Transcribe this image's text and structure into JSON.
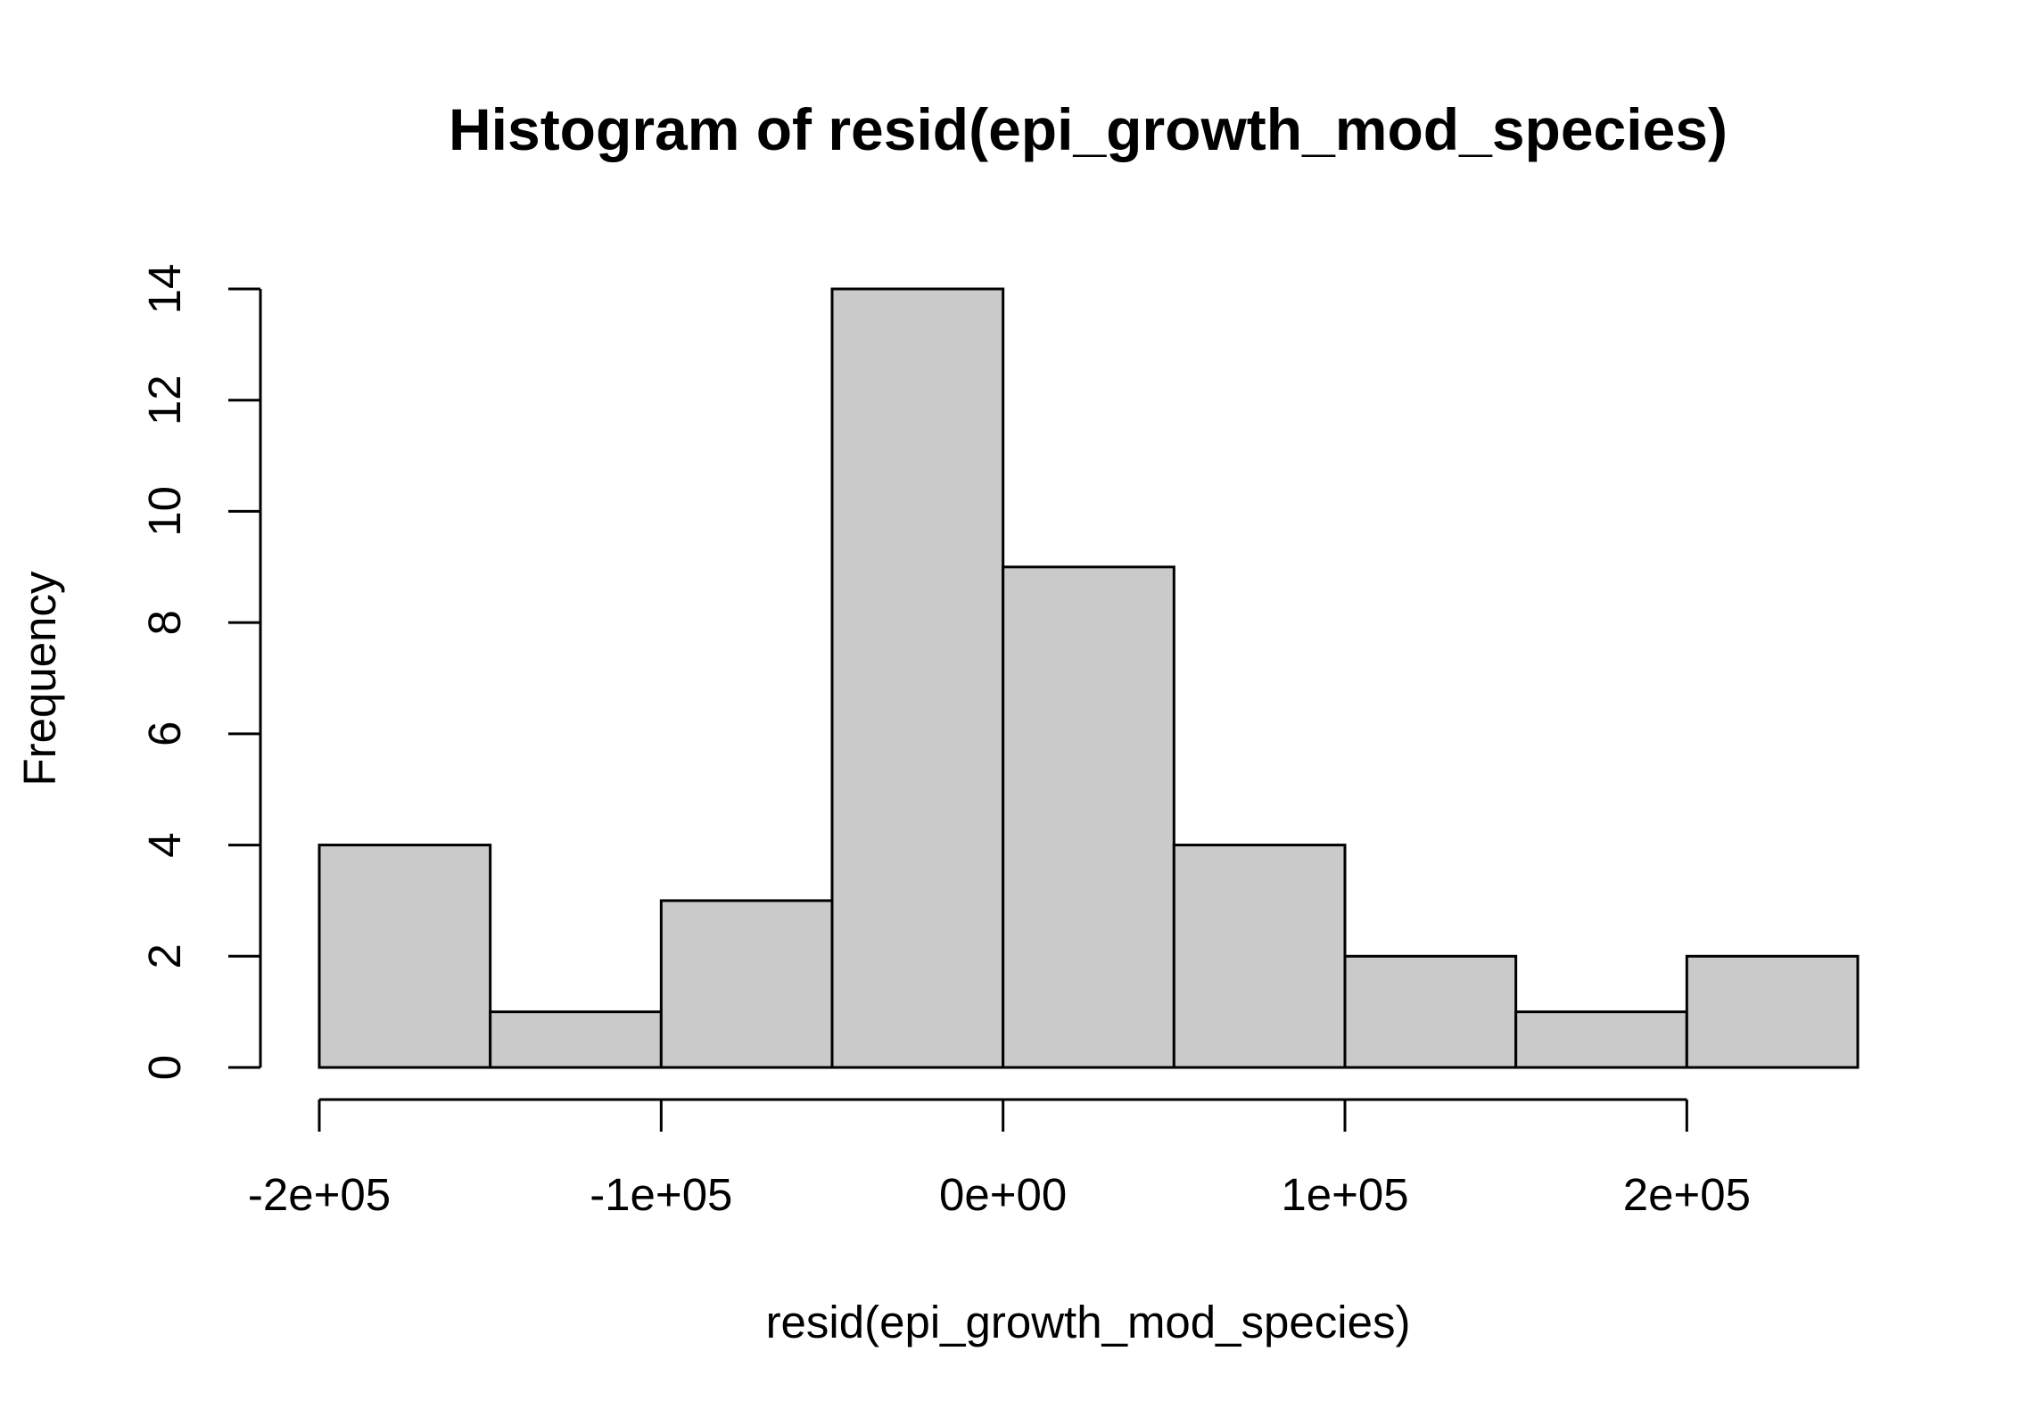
{
  "chart_data": {
    "type": "bar",
    "title": "Histogram of resid(epi_growth_mod_species)",
    "xlabel": "resid(epi_growth_mod_species)",
    "ylabel": "Frequency",
    "bins": [
      {
        "start": -200000,
        "end": -150000,
        "count": 4
      },
      {
        "start": -150000,
        "end": -100000,
        "count": 1
      },
      {
        "start": -100000,
        "end": -50000,
        "count": 3
      },
      {
        "start": -50000,
        "end": 0,
        "count": 14
      },
      {
        "start": 0,
        "end": 50000,
        "count": 9
      },
      {
        "start": 50000,
        "end": 100000,
        "count": 4
      },
      {
        "start": 100000,
        "end": 150000,
        "count": 2
      },
      {
        "start": 150000,
        "end": 200000,
        "count": 1
      },
      {
        "start": 200000,
        "end": 250000,
        "count": 2
      }
    ],
    "xlim": [
      -200000,
      250000
    ],
    "ylim": [
      0,
      14
    ],
    "x_ticks": [
      {
        "value": -200000,
        "label": "-2e+05"
      },
      {
        "value": -100000,
        "label": "-1e+05"
      },
      {
        "value": 0,
        "label": "0e+00"
      },
      {
        "value": 100000,
        "label": "1e+05"
      },
      {
        "value": 200000,
        "label": "2e+05"
      }
    ],
    "y_ticks": [
      {
        "value": 0,
        "label": "0"
      },
      {
        "value": 2,
        "label": "2"
      },
      {
        "value": 4,
        "label": "4"
      },
      {
        "value": 6,
        "label": "6"
      },
      {
        "value": 8,
        "label": "8"
      },
      {
        "value": 10,
        "label": "10"
      },
      {
        "value": 12,
        "label": "12"
      },
      {
        "value": 14,
        "label": "14"
      }
    ],
    "bar_fill": "#cacaca",
    "bar_stroke": "#000000",
    "grid": false,
    "legend": "none"
  }
}
